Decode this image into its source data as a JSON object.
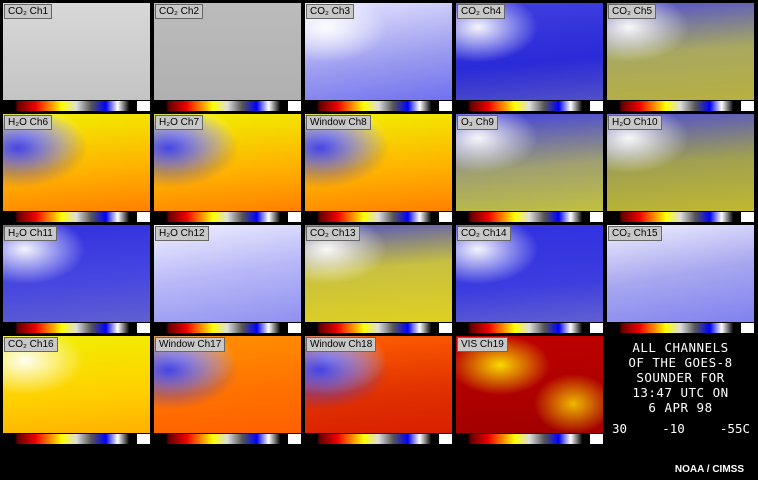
{
  "panels": [
    {
      "label": "CO₂ Ch1"
    },
    {
      "label": "CO₂ Ch2"
    },
    {
      "label": "CO₂ Ch3"
    },
    {
      "label": "CO₂ Ch4"
    },
    {
      "label": "CO₂ Ch5"
    },
    {
      "label": "H₂O Ch6"
    },
    {
      "label": "H₂O Ch7"
    },
    {
      "label": "Window Ch8"
    },
    {
      "label": "O₃ Ch9"
    },
    {
      "label": "H₂O Ch10"
    },
    {
      "label": "H₂O Ch11"
    },
    {
      "label": "H₂O Ch12"
    },
    {
      "label": "CO₂ Ch13"
    },
    {
      "label": "CO₂ Ch14"
    },
    {
      "label": "CO₂ Ch15"
    },
    {
      "label": "CO₂ Ch16"
    },
    {
      "label": "Window Ch17"
    },
    {
      "label": "Window Ch18"
    },
    {
      "label": "VIS Ch19"
    }
  ],
  "caption": [
    "ALL CHANNELS",
    "OF THE GOES-8",
    "SOUNDER FOR",
    "13:47 UTC ON",
    "6 APR 98"
  ],
  "scale": [
    "30",
    "-10",
    "-55C"
  ],
  "credit": "NOAA / CIMSS"
}
